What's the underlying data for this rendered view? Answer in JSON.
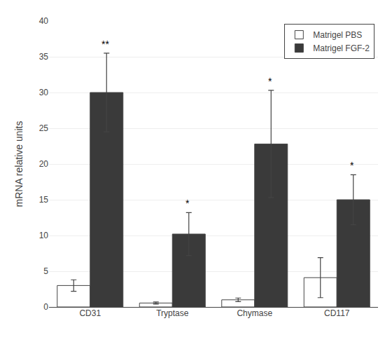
{
  "chart_data": {
    "type": "bar",
    "categories": [
      "CD31",
      "Tryptase",
      "Chymase",
      "CD117"
    ],
    "series": [
      {
        "name": "Matrigel PBS",
        "color": "#ffffff",
        "values": [
          3.0,
          0.55,
          1.0,
          4.1
        ],
        "errors": [
          0.8,
          0.15,
          0.25,
          2.8
        ]
      },
      {
        "name": "Matrigel FGF-2",
        "color": "#3a3a3a",
        "values": [
          30.0,
          10.2,
          22.8,
          15.0
        ],
        "errors": [
          5.5,
          3.0,
          7.5,
          3.5
        ],
        "annotations": [
          "**",
          "*",
          "*",
          "*"
        ]
      }
    ],
    "ylabel": "mRNA relative units",
    "ylim": [
      0,
      40
    ],
    "yticks": [
      0,
      5,
      10,
      15,
      20,
      25,
      30,
      35,
      40
    ],
    "grid": true,
    "legend": "upper right"
  }
}
